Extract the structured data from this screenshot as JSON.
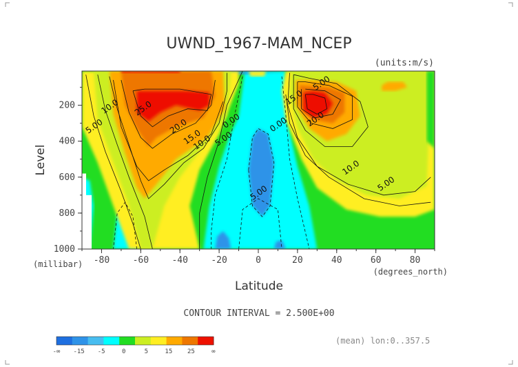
{
  "chart_data": {
    "type": "heatmap",
    "title": "UWND_1967-MAM_NCEP",
    "units_label": "(units:m/s)",
    "xlabel": "Latitude",
    "ylabel": "Level",
    "x_unit_label": "(degrees_north)",
    "y_unit_label": "(millibar)",
    "xlim": [
      -90,
      90
    ],
    "ylim": [
      1000,
      10
    ],
    "x_ticks": [
      "-80",
      "-60",
      "-40",
      "-20",
      "0",
      "20",
      "40",
      "60",
      "80"
    ],
    "x_tick_values": [
      -80,
      -60,
      -40,
      -20,
      0,
      20,
      40,
      60,
      80
    ],
    "y_ticks": [
      "200",
      "400",
      "600",
      "800",
      "1000"
    ],
    "y_tick_values": [
      200,
      400,
      600,
      800,
      1000
    ],
    "contour_interval_text": "CONTOUR INTERVAL = 2.500E+00",
    "mean_text": "(mean) lon:0..357.5",
    "contour_labels": [
      {
        "text": "25.0",
        "x": -58,
        "y": 230
      },
      {
        "text": "20.0",
        "x": -40,
        "y": 330
      },
      {
        "text": "15.0",
        "x": -33,
        "y": 390
      },
      {
        "text": "10.0",
        "x": -28,
        "y": 420
      },
      {
        "text": "10.0",
        "x": -75,
        "y": 220
      },
      {
        "text": "5.00",
        "x": -83,
        "y": 330
      },
      {
        "text": "5.00",
        "x": -17,
        "y": 400
      },
      {
        "text": "0.00",
        "x": -13,
        "y": 300
      },
      {
        "text": "0.00",
        "x": 11,
        "y": 320
      },
      {
        "text": "5.00",
        "x": 1,
        "y": 700
      },
      {
        "text": "15.0",
        "x": 19,
        "y": 170
      },
      {
        "text": "20.0",
        "x": 30,
        "y": 290
      },
      {
        "text": "10.0",
        "x": 48,
        "y": 560
      },
      {
        "text": "5.00",
        "x": 66,
        "y": 650
      },
      {
        "text": "5.00",
        "x": 33,
        "y": 90
      }
    ],
    "colorbar": {
      "colors": [
        "#1e6fe0",
        "#2f93e8",
        "#48bdf0",
        "#00ffff",
        "#22dd22",
        "#ccee22",
        "#ffee22",
        "#ffaa00",
        "#ee7700",
        "#ee1100"
      ],
      "labels": [
        "-∞",
        "-15",
        "-5",
        "0",
        "5",
        "15",
        "25",
        "∞"
      ]
    }
  }
}
